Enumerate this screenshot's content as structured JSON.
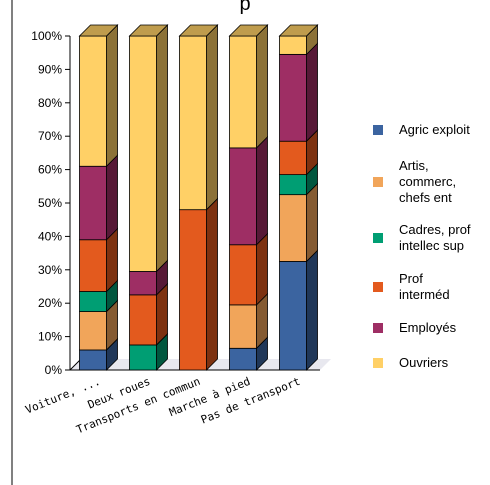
{
  "chart_data": {
    "type": "bar",
    "stacked": true,
    "title": "p",
    "ylim": [
      0,
      100
    ],
    "y_ticks": [
      "0%",
      "10%",
      "20%",
      "30%",
      "40%",
      "50%",
      "60%",
      "70%",
      "80%",
      "90%",
      "100%"
    ],
    "categories": [
      "Voiture, ...",
      "Deux roues",
      "Transports en commun",
      "Marche à pied",
      "Pas de transport"
    ],
    "series": [
      {
        "name": "Agric exploit",
        "color": "#3B64A0",
        "values": [
          6,
          0,
          0,
          6.5,
          32.5
        ]
      },
      {
        "name": "Artis, commerc, chefs ent",
        "color": "#F1A55A",
        "values": [
          11.5,
          0,
          0,
          13,
          20
        ]
      },
      {
        "name": "Cadres, prof intellec sup",
        "color": "#009E73",
        "values": [
          6,
          7.5,
          0,
          0,
          6
        ]
      },
      {
        "name": "Prof interméd",
        "color": "#E35A1E",
        "values": [
          15.5,
          15,
          48,
          18,
          10
        ]
      },
      {
        "name": "Employés",
        "color": "#9E2E64",
        "values": [
          22,
          7,
          0,
          29,
          26
        ]
      },
      {
        "name": "Ouvriers",
        "color": "#FFD066",
        "values": [
          39,
          70.5,
          52,
          33.5,
          5.5
        ]
      }
    ],
    "legend_position": "right",
    "grid": false
  }
}
